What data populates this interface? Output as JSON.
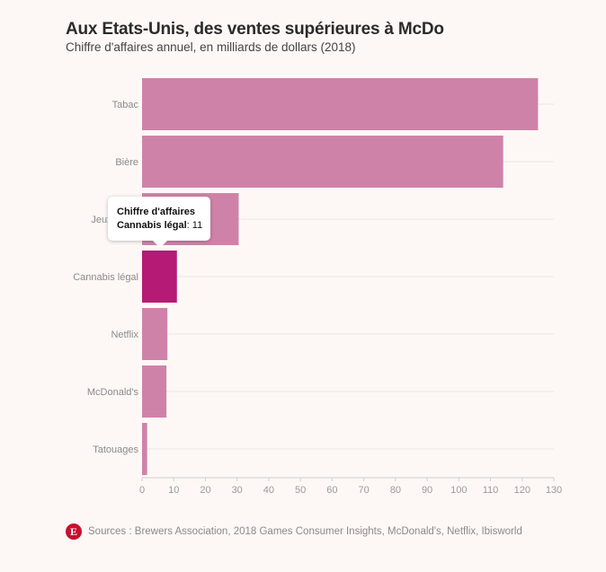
{
  "header": {
    "title": "Aux Etats-Unis, des ventes supérieures à McDo",
    "subtitle": "Chiffre d'affaires annuel, en milliards de dollars (2018)"
  },
  "tooltip": {
    "series_label": "Chiffre d'affaires",
    "category_label": "Cannabis légal",
    "value_text": "11"
  },
  "footer": {
    "logo_letter": "E",
    "sources": "Sources : Brewers Association, 2018 Games Consumer Insights, McDonald's, Netflix, Ibisworld"
  },
  "colors": {
    "bar": "#cf82a8",
    "bar_highlight": "#b51a75",
    "grid": "#ebe6e4",
    "logo": "#c8102e"
  },
  "chart_data": {
    "type": "bar",
    "orientation": "horizontal",
    "categories": [
      "Tabac",
      "Bière",
      "Jeux vidéo",
      "Cannabis légal",
      "Netflix",
      "McDonald's",
      "Tatouages"
    ],
    "series": [
      {
        "name": "Chiffre d'affaires",
        "values": [
          125,
          114,
          30.5,
          11,
          8,
          7.7,
          1.6
        ]
      }
    ],
    "highlighted_category": "Cannabis légal",
    "xlim": [
      0,
      130
    ],
    "x_ticks": [
      0,
      10,
      20,
      30,
      40,
      50,
      60,
      70,
      80,
      90,
      100,
      110,
      120,
      130
    ],
    "grid": true,
    "legend": "none"
  }
}
